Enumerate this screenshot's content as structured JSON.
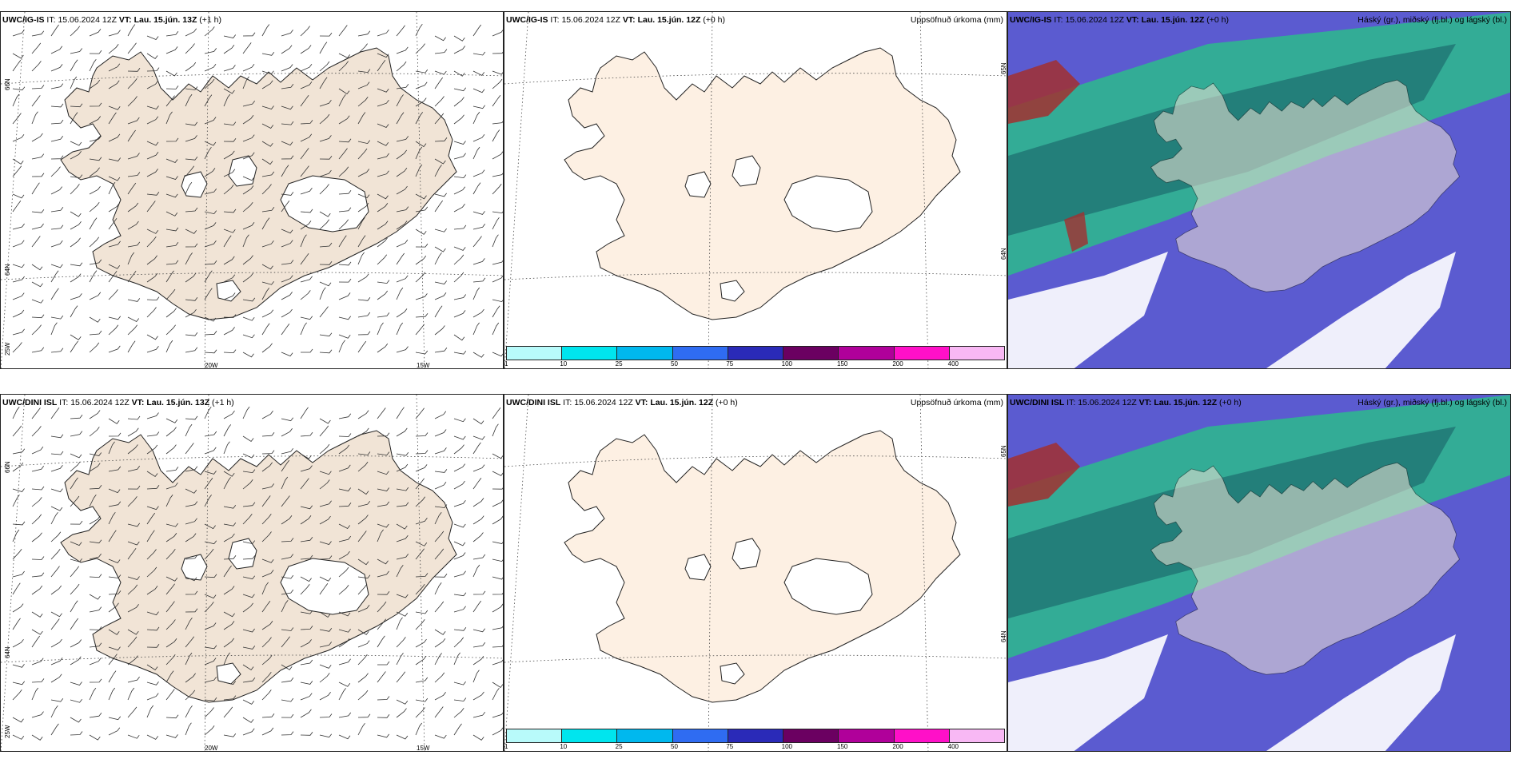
{
  "panels": [
    {
      "id": "ig-wind",
      "model": "UWC/IG-IS",
      "it_label": "IT:",
      "it_value": "15.06.2024 12Z",
      "vt_label": "VT:",
      "vt_value": "Lau. 15.jún. 13Z",
      "lead": "(+1 h)",
      "right_title": "",
      "lat_labels": [
        "66N",
        "64N",
        "25W"
      ],
      "lon_labels": [
        "20W",
        "15W"
      ],
      "fill": "#f1e4d6",
      "type": "wind"
    },
    {
      "id": "ig-precip",
      "model": "UWC/IG-IS",
      "it_label": "IT:",
      "it_value": "15.06.2024 12Z",
      "vt_label": "VT:",
      "vt_value": "Lau. 15.jún. 12Z",
      "lead": "(+0 h)",
      "right_title": "Uppsöfnuð úrkoma (mm)",
      "lat_labels": [
        "65N",
        "64N"
      ],
      "lon_labels": [],
      "fill": "#fdf0e3",
      "type": "precip"
    },
    {
      "id": "ig-cloud",
      "model": "UWC/IG-IS",
      "it_label": "IT:",
      "it_value": "15.06.2024 12Z",
      "vt_label": "VT:",
      "vt_value": "Lau. 15.jún. 12Z",
      "lead": "(+0 h)",
      "right_title": "Háský (gr.), miðský (fj.bl.) og lágský (bl.)",
      "lat_labels": [],
      "lon_labels": [],
      "fill": "#f1e4d6",
      "type": "cloud"
    },
    {
      "id": "dini-wind",
      "model": "UWC/DINI ISL",
      "it_label": "IT:",
      "it_value": "15.06.2024 12Z",
      "vt_label": "VT:",
      "vt_value": "Lau. 15.jún. 13Z",
      "lead": "(+1 h)",
      "right_title": "",
      "lat_labels": [
        "66N",
        "64N",
        "25W"
      ],
      "lon_labels": [
        "20W",
        "15W"
      ],
      "fill": "#f1e4d6",
      "type": "wind"
    },
    {
      "id": "dini-precip",
      "model": "UWC/DINI ISL",
      "it_label": "IT:",
      "it_value": "15.06.2024 12Z",
      "vt_label": "VT:",
      "vt_value": "Lau. 15.jún. 12Z",
      "lead": "(+0 h)",
      "right_title": "Uppsöfnuð úrkoma (mm)",
      "lat_labels": [
        "65N",
        "64N"
      ],
      "lon_labels": [],
      "fill": "#fdf0e3",
      "type": "precip"
    },
    {
      "id": "dini-cloud",
      "model": "UWC/DINI ISL",
      "it_label": "IT:",
      "it_value": "15.06.2024 12Z",
      "vt_label": "VT:",
      "vt_value": "Lau. 15.jún. 12Z",
      "lead": "(+0 h)",
      "right_title": "Háský (gr.), miðský (fj.bl.) og lágský (bl.)",
      "lat_labels": [],
      "lon_labels": [],
      "fill": "#f1e4d6",
      "type": "cloud"
    }
  ],
  "precip_colorbar": {
    "colors": [
      "#b8fafa",
      "#00e5ee",
      "#00b8ee",
      "#2f6cf2",
      "#2a2ab8",
      "#6b0061",
      "#b0009a",
      "#ff10c8",
      "#f8b8f4"
    ],
    "labels": [
      "1",
      "10",
      "25",
      "50",
      "75",
      "100",
      "150",
      "200",
      "400"
    ]
  },
  "cloud_colors": {
    "ocean_low": "#5b5bd0",
    "mid": "#2fb58f",
    "high": "#1f7070",
    "red": "#a23030"
  }
}
